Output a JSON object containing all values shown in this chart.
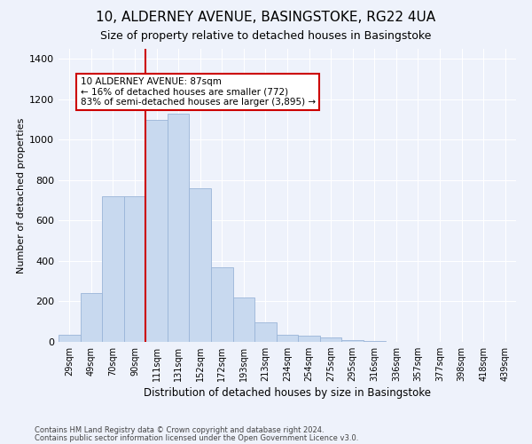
{
  "title1": "10, ALDERNEY AVENUE, BASINGSTOKE, RG22 4UA",
  "title2": "Size of property relative to detached houses in Basingstoke",
  "xlabel": "Distribution of detached houses by size in Basingstoke",
  "ylabel": "Number of detached properties",
  "categories": [
    "29sqm",
    "49sqm",
    "70sqm",
    "90sqm",
    "111sqm",
    "131sqm",
    "152sqm",
    "172sqm",
    "193sqm",
    "213sqm",
    "234sqm",
    "254sqm",
    "275sqm",
    "295sqm",
    "316sqm",
    "336sqm",
    "357sqm",
    "377sqm",
    "398sqm",
    "418sqm",
    "439sqm"
  ],
  "values": [
    35,
    240,
    720,
    720,
    1100,
    1130,
    760,
    370,
    220,
    95,
    35,
    30,
    20,
    10,
    5,
    0,
    0,
    0,
    0,
    0,
    0
  ],
  "bar_color": "#c8d9ef",
  "bar_edge_color": "#9ab5d8",
  "vline_color": "#cc0000",
  "vline_index": 4,
  "annotation_text": "10 ALDERNEY AVENUE: 87sqm\n← 16% of detached houses are smaller (772)\n83% of semi-detached houses are larger (3,895) →",
  "annotation_box_color": "#ffffff",
  "annotation_box_edge": "#cc0000",
  "ylim": [
    0,
    1450
  ],
  "yticks": [
    0,
    200,
    400,
    600,
    800,
    1000,
    1200,
    1400
  ],
  "footnote1": "Contains HM Land Registry data © Crown copyright and database right 2024.",
  "footnote2": "Contains public sector information licensed under the Open Government Licence v3.0.",
  "background_color": "#eef2fb",
  "grid_color": "#ffffff",
  "title1_fontsize": 11,
  "title2_fontsize": 9
}
